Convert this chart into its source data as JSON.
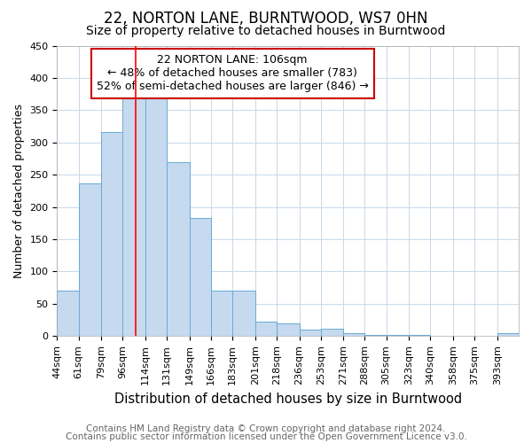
{
  "title": "22, NORTON LANE, BURNTWOOD, WS7 0HN",
  "subtitle": "Size of property relative to detached houses in Burntwood",
  "xlabel": "Distribution of detached houses by size in Burntwood",
  "ylabel": "Number of detached properties",
  "footnote1": "Contains HM Land Registry data © Crown copyright and database right 2024.",
  "footnote2": "Contains public sector information licensed under the Open Government Licence v3.0.",
  "categories": [
    "44sqm",
    "61sqm",
    "79sqm",
    "96sqm",
    "114sqm",
    "131sqm",
    "149sqm",
    "166sqm",
    "183sqm",
    "201sqm",
    "218sqm",
    "236sqm",
    "253sqm",
    "271sqm",
    "288sqm",
    "305sqm",
    "323sqm",
    "340sqm",
    "358sqm",
    "375sqm",
    "393sqm"
  ],
  "values": [
    70,
    236,
    316,
    370,
    370,
    270,
    183,
    70,
    70,
    23,
    20,
    10,
    12,
    4,
    2,
    2,
    2,
    0,
    0,
    0,
    4
  ],
  "bar_color": "#c5d9ef",
  "bar_edge_color": "#6aaad4",
  "red_line_x": 106,
  "bin_edges": [
    44,
    61,
    79,
    96,
    114,
    131,
    149,
    166,
    183,
    201,
    218,
    236,
    253,
    271,
    288,
    305,
    323,
    340,
    358,
    375,
    393,
    410
  ],
  "annotation_text": "22 NORTON LANE: 106sqm\n← 48% of detached houses are smaller (783)\n52% of semi-detached houses are larger (846) →",
  "annotation_box_color": "#ffffff",
  "annotation_box_edge_color": "#cc0000",
  "ylim": [
    0,
    450
  ],
  "yticks": [
    0,
    50,
    100,
    150,
    200,
    250,
    300,
    350,
    400,
    450
  ],
  "background_color": "#ffffff",
  "grid_color": "#c8d8ea",
  "title_fontsize": 12,
  "subtitle_fontsize": 10,
  "xlabel_fontsize": 10.5,
  "ylabel_fontsize": 9,
  "tick_fontsize": 8,
  "annotation_fontsize": 9,
  "footnote_fontsize": 7.5
}
